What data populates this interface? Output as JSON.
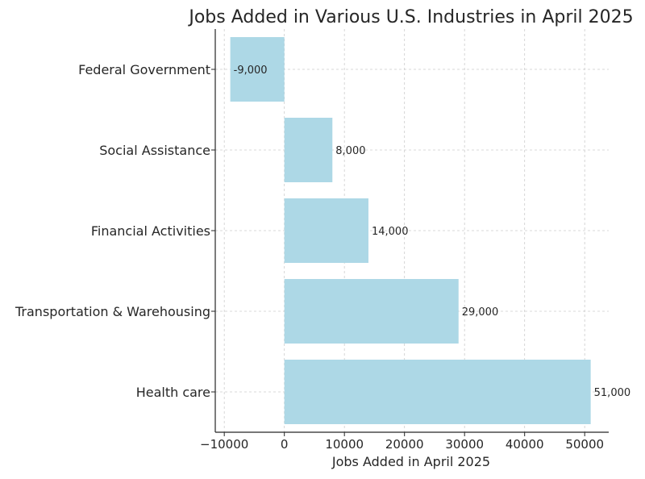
{
  "chart_data": {
    "type": "bar",
    "orientation": "horizontal",
    "title": "Jobs Added in Various U.S. Industries in April 2025",
    "xlabel": "Jobs Added in April 2025",
    "ylabel": "",
    "categories": [
      "Health care",
      "Transportation & Warehousing",
      "Financial Activities",
      "Social Assistance",
      "Federal Government"
    ],
    "values": [
      51000,
      29000,
      14000,
      8000,
      -9000
    ],
    "value_labels": [
      "51,000",
      "29,000",
      "14,000",
      "8,000",
      "-9,000"
    ],
    "xlim": [
      -11500,
      54000
    ],
    "xticks": [
      -10000,
      0,
      10000,
      20000,
      30000,
      40000,
      50000
    ],
    "xtick_labels": [
      "−10000",
      "0",
      "10000",
      "20000",
      "30000",
      "40000",
      "50000"
    ],
    "grid": true,
    "legend": "none",
    "bar_color": "#add8e6"
  }
}
